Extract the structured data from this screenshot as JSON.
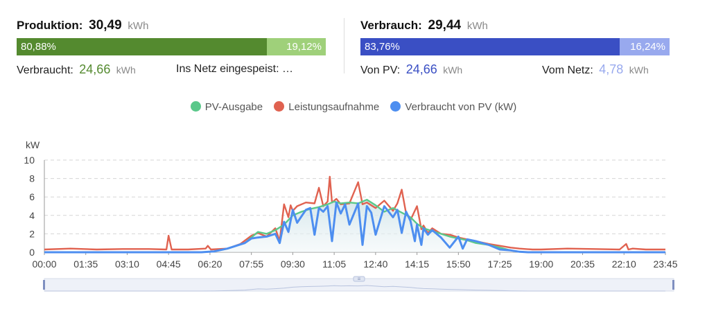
{
  "production": {
    "label": "Produktion:",
    "value": "30,49",
    "unit": "kWh",
    "bar_left_pct": "80,88%",
    "bar_right_pct": "19,12%",
    "bar_left_fraction": 0.8088,
    "bar_left_color": "#548a2f",
    "bar_right_color": "#9fd07a",
    "consumed_label": "Verbraucht:",
    "consumed_value": "24,66",
    "consumed_unit": "kWh",
    "consumed_color": "#548a2f",
    "fed_in_label": "Ins Netz eingespeist: …"
  },
  "consumption": {
    "label": "Verbrauch:",
    "value": "29,44",
    "unit": "kWh",
    "bar_left_pct": "83,76%",
    "bar_right_pct": "16,24%",
    "bar_left_fraction": 0.8376,
    "bar_left_color": "#3a4fc4",
    "bar_right_color": "#98a9ee",
    "from_pv_label": "Von PV:",
    "from_pv_value": "24,66",
    "from_pv_unit": "kWh",
    "from_pv_color": "#3a4fc4",
    "from_grid_label": "Vom Netz:",
    "from_grid_value": "4,78",
    "from_grid_unit": "kWh",
    "from_grid_color": "#98a9ee"
  },
  "chart_data": {
    "type": "line",
    "title": "",
    "xlabel": "",
    "ylabel": "kW",
    "ylim": [
      0,
      10
    ],
    "yticks": [
      "0",
      "2",
      "4",
      "6",
      "8",
      "10"
    ],
    "x_tick_labels": [
      "00:00",
      "01:35",
      "03:10",
      "04:45",
      "06:20",
      "07:55",
      "09:30",
      "11:05",
      "12:40",
      "14:15",
      "15:50",
      "17:25",
      "19:00",
      "20:35",
      "22:10",
      "23:45"
    ],
    "x_range_minutes": [
      0,
      1425
    ],
    "grid": true,
    "legend_position": "top-center",
    "series": [
      {
        "name": "PV-Ausgabe",
        "color": "#5ac88a",
        "x": [
          "00:00",
          "06:00",
          "06:30",
          "07:00",
          "07:20",
          "07:40",
          "07:55",
          "08:10",
          "08:30",
          "08:50",
          "09:10",
          "09:30",
          "09:50",
          "10:10",
          "10:30",
          "10:50",
          "11:05",
          "11:20",
          "11:40",
          "12:00",
          "12:20",
          "12:40",
          "13:00",
          "13:20",
          "13:40",
          "14:00",
          "14:15",
          "14:30",
          "14:50",
          "15:10",
          "15:30",
          "15:50",
          "16:10",
          "16:30",
          "17:00",
          "17:25",
          "17:50",
          "18:10",
          "18:30",
          "23:45"
        ],
        "y": [
          0,
          0,
          0.1,
          0.4,
          0.7,
          1.0,
          1.6,
          2.2,
          2.0,
          2.4,
          3.0,
          4.0,
          4.4,
          4.7,
          4.9,
          5.2,
          5.5,
          5.3,
          5.4,
          5.3,
          5.7,
          5.1,
          4.4,
          4.8,
          4.3,
          3.8,
          3.1,
          2.6,
          2.3,
          2.0,
          1.7,
          1.5,
          1.3,
          1.0,
          0.8,
          0.5,
          0.2,
          0.05,
          0,
          0
        ]
      },
      {
        "name": "Leistungsaufnahme",
        "color": "#e06250",
        "x": [
          "00:00",
          "01:00",
          "02:00",
          "03:00",
          "04:00",
          "04:40",
          "04:45",
          "04:52",
          "05:30",
          "06:10",
          "06:15",
          "06:22",
          "07:00",
          "07:30",
          "07:55",
          "08:10",
          "08:30",
          "08:50",
          "09:00",
          "09:10",
          "09:20",
          "09:25",
          "09:30",
          "09:40",
          "10:00",
          "10:20",
          "10:30",
          "10:40",
          "10:50",
          "10:55",
          "11:00",
          "11:10",
          "11:20",
          "11:40",
          "12:00",
          "12:10",
          "12:20",
          "12:40",
          "13:00",
          "13:20",
          "13:30",
          "13:40",
          "13:50",
          "14:00",
          "14:15",
          "14:25",
          "14:30",
          "14:40",
          "14:50",
          "15:10",
          "15:30",
          "15:50",
          "16:10",
          "16:30",
          "17:00",
          "17:25",
          "17:50",
          "18:10",
          "18:40",
          "19:00",
          "20:00",
          "21:00",
          "22:00",
          "22:15",
          "22:20",
          "22:30",
          "23:00",
          "23:45"
        ],
        "y": [
          0.3,
          0.4,
          0.3,
          0.35,
          0.35,
          0.3,
          1.8,
          0.3,
          0.3,
          0.4,
          0.7,
          0.3,
          0.4,
          0.9,
          1.8,
          2.1,
          1.7,
          2.6,
          1.2,
          5.2,
          3.8,
          5.1,
          4.5,
          5.0,
          5.4,
          5.3,
          7.0,
          5.0,
          5.5,
          8.2,
          5.4,
          5.8,
          5.2,
          5.3,
          7.6,
          5.2,
          5.4,
          4.8,
          5.6,
          4.5,
          5.3,
          6.8,
          4.2,
          3.5,
          5.0,
          2.5,
          2.9,
          2.1,
          2.6,
          2.0,
          1.9,
          1.6,
          1.4,
          1.2,
          0.9,
          0.7,
          0.5,
          0.4,
          0.3,
          0.3,
          0.4,
          0.35,
          0.3,
          0.9,
          0.3,
          0.4,
          0.3,
          0.3
        ]
      },
      {
        "name": "Verbraucht von PV (kW)",
        "color": "#4d8ef0",
        "x": [
          "00:00",
          "06:00",
          "06:30",
          "07:00",
          "07:20",
          "07:40",
          "07:55",
          "08:10",
          "08:30",
          "08:50",
          "09:00",
          "09:10",
          "09:20",
          "09:30",
          "09:40",
          "10:00",
          "10:10",
          "10:20",
          "10:30",
          "10:40",
          "10:50",
          "11:00",
          "11:10",
          "11:20",
          "11:30",
          "11:40",
          "12:00",
          "12:10",
          "12:20",
          "12:30",
          "12:40",
          "13:00",
          "13:20",
          "13:30",
          "13:40",
          "13:50",
          "14:00",
          "14:10",
          "14:15",
          "14:25",
          "14:30",
          "14:40",
          "14:50",
          "15:10",
          "15:30",
          "15:50",
          "16:00",
          "16:10",
          "16:30",
          "17:00",
          "17:25",
          "17:50",
          "18:10",
          "18:30",
          "23:45"
        ],
        "y": [
          0,
          0,
          0.1,
          0.4,
          0.7,
          1.0,
          1.5,
          1.6,
          1.7,
          2.0,
          1.0,
          3.3,
          2.2,
          4.6,
          3.2,
          4.6,
          4.8,
          1.9,
          4.8,
          4.4,
          5.0,
          1.2,
          5.4,
          4.2,
          5.2,
          3.0,
          5.3,
          0.8,
          5.0,
          4.3,
          1.9,
          5.0,
          3.8,
          4.6,
          2.1,
          4.4,
          3.4,
          1.2,
          3.0,
          0.8,
          2.6,
          1.9,
          2.4,
          1.6,
          0.5,
          1.7,
          0.4,
          1.4,
          1.2,
          0.8,
          0.3,
          0.2,
          0.05,
          0,
          0
        ]
      }
    ]
  },
  "range_slider": {
    "handle_glyph": "≡"
  }
}
